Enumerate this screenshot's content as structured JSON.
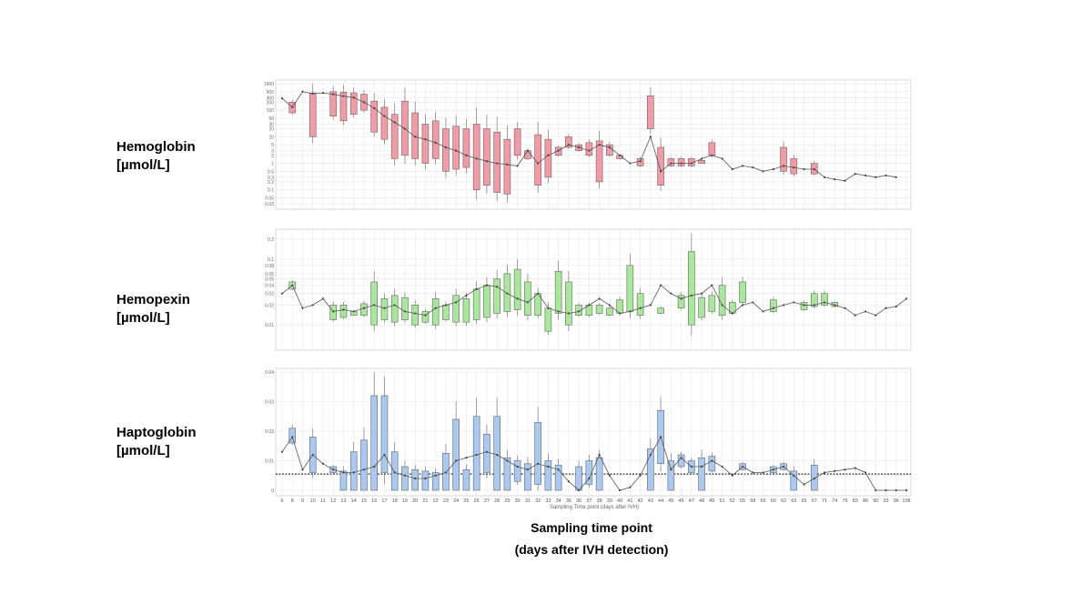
{
  "labels": {
    "hemoglobin": [
      "Hemoglobin",
      "[µmol/L]"
    ],
    "hemopexin": [
      "Hemopexin",
      "[µmol/L]"
    ],
    "haptoglobin": [
      "Haptoglobin",
      "[µmol/L]"
    ]
  },
  "x_title": [
    "Sampling time point",
    "(days after IVH detection)"
  ],
  "inner_xlabel": "Sampling Time point (days after IVH)",
  "days": [
    "6",
    "8",
    "9",
    "10",
    "11",
    "12",
    "13",
    "14",
    "15",
    "16",
    "17",
    "18",
    "19",
    "20",
    "21",
    "22",
    "23",
    "24",
    "25",
    "26",
    "27",
    "28",
    "29",
    "30",
    "31",
    "32",
    "33",
    "34",
    "35",
    "36",
    "37",
    "38",
    "39",
    "40",
    "41",
    "42",
    "43",
    "44",
    "45",
    "46",
    "47",
    "48",
    "49",
    "51",
    "52",
    "55",
    "58",
    "59",
    "60",
    "62",
    "63",
    "65",
    "67",
    "71",
    "74",
    "76",
    "83",
    "86",
    "90",
    "93",
    "96",
    "108"
  ],
  "colors": {
    "hemoglobin": "#f49aa5",
    "hemopexin": "#a8e89a",
    "haptoglobin": "#a9c9f0",
    "line": "#555555",
    "grid": "#e6e6e6"
  },
  "chart_data": [
    {
      "type": "box",
      "name": "hemoglobin",
      "scale": "log",
      "ylim": [
        0.03,
        1000
      ],
      "yticks": [
        "1000",
        "500",
        "300",
        "200",
        "100",
        "50",
        "30",
        "20",
        "10",
        "5",
        "3",
        "2",
        "1",
        "0.5",
        "0.3",
        "0.2",
        "0.1",
        "0.05",
        "0.03"
      ],
      "median_line": [
        280,
        130,
        500,
        420,
        450,
        400,
        340,
        300,
        200,
        120,
        60,
        35,
        20,
        10,
        8,
        6,
        4,
        3,
        2,
        1.5,
        1.2,
        1,
        0.9,
        0.8,
        3,
        1,
        2,
        3,
        5,
        4,
        3,
        5,
        4,
        2,
        1,
        1.2,
        10,
        0.5,
        1,
        1,
        1,
        1.5,
        2,
        1.5,
        0.6,
        0.8,
        0.7,
        0.5,
        0.6,
        0.8,
        0.7,
        0.6,
        0.6,
        0.3,
        0.25,
        0.22,
        0.4,
        0.35,
        0.3,
        0.35,
        0.3,
        null
      ],
      "boxes": [
        {
          "i": 1,
          "q1": 80,
          "q3": 200
        },
        {
          "i": 3,
          "q1": 10,
          "q3": 450
        },
        {
          "i": 5,
          "q1": 60,
          "q3": 500
        },
        {
          "i": 6,
          "q1": 40,
          "q3": 480
        },
        {
          "i": 7,
          "q1": 70,
          "q3": 450
        },
        {
          "i": 8,
          "q1": 100,
          "q3": 400
        },
        {
          "i": 9,
          "q1": 15,
          "q3": 220
        },
        {
          "i": 10,
          "q1": 8,
          "q3": 130
        },
        {
          "i": 11,
          "q1": 1.5,
          "q3": 70
        },
        {
          "i": 12,
          "q1": 2,
          "q3": 220
        },
        {
          "i": 13,
          "q1": 1.5,
          "q3": 80
        },
        {
          "i": 14,
          "q1": 1,
          "q3": 30
        },
        {
          "i": 15,
          "q1": 1.5,
          "q3": 40
        },
        {
          "i": 16,
          "q1": 0.5,
          "q3": 20
        },
        {
          "i": 17,
          "q1": 0.6,
          "q3": 25
        },
        {
          "i": 18,
          "q1": 0.7,
          "q3": 20
        },
        {
          "i": 19,
          "q1": 0.1,
          "q3": 30
        },
        {
          "i": 20,
          "q1": 0.15,
          "q3": 20
        },
        {
          "i": 21,
          "q1": 0.08,
          "q3": 15
        },
        {
          "i": 22,
          "q1": 0.07,
          "q3": 8
        },
        {
          "i": 23,
          "q1": 2,
          "q3": 20
        },
        {
          "i": 24,
          "q1": 1.5,
          "q3": 3
        },
        {
          "i": 25,
          "q1": 0.15,
          "q3": 12
        },
        {
          "i": 26,
          "q1": 0.3,
          "q3": 8
        },
        {
          "i": 27,
          "q1": 2,
          "q3": 4
        },
        {
          "i": 28,
          "q1": 4,
          "q3": 10
        },
        {
          "i": 29,
          "q1": 3,
          "q3": 5
        },
        {
          "i": 30,
          "q1": 2,
          "q3": 6
        },
        {
          "i": 31,
          "q1": 0.2,
          "q3": 7
        },
        {
          "i": 32,
          "q1": 2,
          "q3": 5
        },
        {
          "i": 33,
          "q1": 1.5,
          "q3": 2
        },
        {
          "i": 35,
          "q1": 0.8,
          "q3": 1.5
        },
        {
          "i": 36,
          "q1": 20,
          "q3": 350
        },
        {
          "i": 37,
          "q1": 0.15,
          "q3": 4
        },
        {
          "i": 38,
          "q1": 0.8,
          "q3": 1.5
        },
        {
          "i": 39,
          "q1": 0.8,
          "q3": 1.5
        },
        {
          "i": 40,
          "q1": 0.8,
          "q3": 1.5
        },
        {
          "i": 41,
          "q1": 1,
          "q3": 1.3
        },
        {
          "i": 42,
          "q1": 2,
          "q3": 6
        },
        {
          "i": 49,
          "q1": 0.5,
          "q3": 4
        },
        {
          "i": 50,
          "q1": 0.4,
          "q3": 1.5
        },
        {
          "i": 52,
          "q1": 0.4,
          "q3": 1
        }
      ]
    },
    {
      "type": "box",
      "name": "hemopexin",
      "scale": "log",
      "ylim": [
        0.005,
        0.25
      ],
      "yticks": [
        "0.2",
        "0.1",
        "0.08",
        "0.06",
        "0.05",
        "0.04",
        "0.03",
        "0.02",
        "0.01"
      ],
      "median_line": [
        0.03,
        0.04,
        0.018,
        0.02,
        0.025,
        0.016,
        0.017,
        0.016,
        0.018,
        0.02,
        0.018,
        0.02,
        0.016,
        0.015,
        0.014,
        0.018,
        0.02,
        0.022,
        0.028,
        0.035,
        0.04,
        0.038,
        0.03,
        0.025,
        0.022,
        0.03,
        0.018,
        0.016,
        0.015,
        0.016,
        0.02,
        0.025,
        0.02,
        0.015,
        0.016,
        0.018,
        0.02,
        0.04,
        0.03,
        0.025,
        0.028,
        0.03,
        0.04,
        0.02,
        0.015,
        0.02,
        0.022,
        0.016,
        0.018,
        0.02,
        0.022,
        0.02,
        0.02,
        0.022,
        0.02,
        0.018,
        0.014,
        0.016,
        0.014,
        0.018,
        0.019,
        0.025
      ],
      "boxes": [
        {
          "i": 1,
          "q1": 0.035,
          "q3": 0.045
        },
        {
          "i": 5,
          "q1": 0.012,
          "q3": 0.02
        },
        {
          "i": 6,
          "q1": 0.013,
          "q3": 0.02
        },
        {
          "i": 7,
          "q1": 0.014,
          "q3": 0.016
        },
        {
          "i": 8,
          "q1": 0.014,
          "q3": 0.021
        },
        {
          "i": 9,
          "q1": 0.01,
          "q3": 0.045
        },
        {
          "i": 10,
          "q1": 0.012,
          "q3": 0.025
        },
        {
          "i": 11,
          "q1": 0.011,
          "q3": 0.028
        },
        {
          "i": 12,
          "q1": 0.012,
          "q3": 0.026
        },
        {
          "i": 13,
          "q1": 0.01,
          "q3": 0.02
        },
        {
          "i": 14,
          "q1": 0.011,
          "q3": 0.016
        },
        {
          "i": 15,
          "q1": 0.01,
          "q3": 0.025
        },
        {
          "i": 16,
          "q1": 0.012,
          "q3": 0.02
        },
        {
          "i": 17,
          "q1": 0.011,
          "q3": 0.028
        },
        {
          "i": 18,
          "q1": 0.011,
          "q3": 0.025
        },
        {
          "i": 19,
          "q1": 0.012,
          "q3": 0.035
        },
        {
          "i": 20,
          "q1": 0.013,
          "q3": 0.04
        },
        {
          "i": 21,
          "q1": 0.015,
          "q3": 0.05
        },
        {
          "i": 22,
          "q1": 0.016,
          "q3": 0.06
        },
        {
          "i": 23,
          "q1": 0.017,
          "q3": 0.07
        },
        {
          "i": 24,
          "q1": 0.014,
          "q3": 0.045
        },
        {
          "i": 25,
          "q1": 0.014,
          "q3": 0.03
        },
        {
          "i": 26,
          "q1": 0.008,
          "q3": 0.018
        },
        {
          "i": 27,
          "q1": 0.015,
          "q3": 0.065
        },
        {
          "i": 28,
          "q1": 0.01,
          "q3": 0.045
        },
        {
          "i": 29,
          "q1": 0.014,
          "q3": 0.02
        },
        {
          "i": 30,
          "q1": 0.014,
          "q3": 0.02
        },
        {
          "i": 31,
          "q1": 0.015,
          "q3": 0.02
        },
        {
          "i": 32,
          "q1": 0.014,
          "q3": 0.018
        },
        {
          "i": 33,
          "q1": 0.015,
          "q3": 0.024
        },
        {
          "i": 34,
          "q1": 0.016,
          "q3": 0.08
        },
        {
          "i": 35,
          "q1": 0.014,
          "q3": 0.03
        },
        {
          "i": 37,
          "q1": 0.015,
          "q3": 0.018
        },
        {
          "i": 39,
          "q1": 0.018,
          "q3": 0.028
        },
        {
          "i": 40,
          "q1": 0.01,
          "q3": 0.13
        },
        {
          "i": 41,
          "q1": 0.013,
          "q3": 0.026
        },
        {
          "i": 42,
          "q1": 0.016,
          "q3": 0.028
        },
        {
          "i": 43,
          "q1": 0.014,
          "q3": 0.04
        },
        {
          "i": 44,
          "q1": 0.015,
          "q3": 0.022
        },
        {
          "i": 45,
          "q1": 0.022,
          "q3": 0.045
        },
        {
          "i": 48,
          "q1": 0.016,
          "q3": 0.024
        },
        {
          "i": 51,
          "q1": 0.017,
          "q3": 0.022
        },
        {
          "i": 52,
          "q1": 0.019,
          "q3": 0.03
        },
        {
          "i": 53,
          "q1": 0.02,
          "q3": 0.03
        },
        {
          "i": 54,
          "q1": 0.019,
          "q3": 0.022
        }
      ]
    },
    {
      "type": "box",
      "name": "haptoglobin",
      "scale": "linear",
      "ylim": [
        0,
        0.04
      ],
      "yticks": [
        "0.04",
        "0.03",
        "0.02",
        "0.01",
        "0"
      ],
      "reference_line": 0.0055,
      "median_line": [
        0.013,
        0.018,
        0.007,
        0.012,
        0.009,
        0.007,
        0.006,
        0.006,
        0.007,
        0.008,
        0.012,
        0.006,
        0.005,
        0.004,
        0.004,
        0.005,
        0.006,
        0.01,
        0.011,
        0.012,
        0.013,
        0.012,
        0.01,
        0.008,
        0.007,
        0.009,
        0.008,
        0.007,
        0.003,
        0.0,
        0.004,
        0.012,
        0.005,
        0.0,
        0.001,
        0.005,
        0.012,
        0.018,
        0.007,
        0.011,
        0.008,
        0.008,
        0.01,
        0.008,
        0.005,
        0.008,
        0.006,
        0.006,
        0.007,
        0.008,
        0.005,
        0.002,
        0.004,
        0.006,
        0.0065,
        0.007,
        0.0075,
        0.006,
        0.0,
        0.0,
        0.0,
        0.0
      ],
      "boxes": [
        {
          "i": 1,
          "q1": 0.016,
          "q3": 0.021
        },
        {
          "i": 3,
          "q1": 0.006,
          "q3": 0.018
        },
        {
          "i": 5,
          "q1": 0.006,
          "q3": 0.008
        },
        {
          "i": 6,
          "q1": 0.0,
          "q3": 0.0065
        },
        {
          "i": 7,
          "q1": 0.0,
          "q3": 0.013
        },
        {
          "i": 8,
          "q1": 0.0,
          "q3": 0.017
        },
        {
          "i": 9,
          "q1": 0.0,
          "q3": 0.032
        },
        {
          "i": 10,
          "q1": 0.006,
          "q3": 0.032
        },
        {
          "i": 11,
          "q1": 0.0,
          "q3": 0.013
        },
        {
          "i": 12,
          "q1": 0.0,
          "q3": 0.008
        },
        {
          "i": 13,
          "q1": 0.0,
          "q3": 0.007
        },
        {
          "i": 14,
          "q1": 0.0,
          "q3": 0.0065
        },
        {
          "i": 15,
          "q1": 0.0,
          "q3": 0.006
        },
        {
          "i": 16,
          "q1": 0.0,
          "q3": 0.0125
        },
        {
          "i": 17,
          "q1": 0.0,
          "q3": 0.024
        },
        {
          "i": 18,
          "q1": 0.0,
          "q3": 0.007
        },
        {
          "i": 19,
          "q1": 0.0,
          "q3": 0.025
        },
        {
          "i": 20,
          "q1": 0.006,
          "q3": 0.019
        },
        {
          "i": 21,
          "q1": 0.0,
          "q3": 0.025
        },
        {
          "i": 22,
          "q1": 0.0,
          "q3": 0.011
        },
        {
          "i": 23,
          "q1": 0.003,
          "q3": 0.01
        },
        {
          "i": 24,
          "q1": 0.0,
          "q3": 0.009
        },
        {
          "i": 25,
          "q1": 0.002,
          "q3": 0.023
        },
        {
          "i": 26,
          "q1": 0.0,
          "q3": 0.01
        },
        {
          "i": 27,
          "q1": 0.0,
          "q3": 0.0085
        },
        {
          "i": 29,
          "q1": 0.0,
          "q3": 0.008
        },
        {
          "i": 30,
          "q1": 0.002,
          "q3": 0.01
        },
        {
          "i": 31,
          "q1": 0.0,
          "q3": 0.011
        },
        {
          "i": 36,
          "q1": 0.0,
          "q3": 0.014
        },
        {
          "i": 37,
          "q1": 0.009,
          "q3": 0.027
        },
        {
          "i": 38,
          "q1": 0.0,
          "q3": 0.01
        },
        {
          "i": 39,
          "q1": 0.008,
          "q3": 0.012
        },
        {
          "i": 40,
          "q1": 0.006,
          "q3": 0.01
        },
        {
          "i": 41,
          "q1": 0.0,
          "q3": 0.011
        },
        {
          "i": 42,
          "q1": 0.0065,
          "q3": 0.0115
        },
        {
          "i": 45,
          "q1": 0.007,
          "q3": 0.009
        },
        {
          "i": 48,
          "q1": 0.006,
          "q3": 0.008
        },
        {
          "i": 49,
          "q1": 0.007,
          "q3": 0.009
        },
        {
          "i": 50,
          "q1": 0.0,
          "q3": 0.0065
        },
        {
          "i": 52,
          "q1": 0.0,
          "q3": 0.0085
        }
      ]
    }
  ]
}
